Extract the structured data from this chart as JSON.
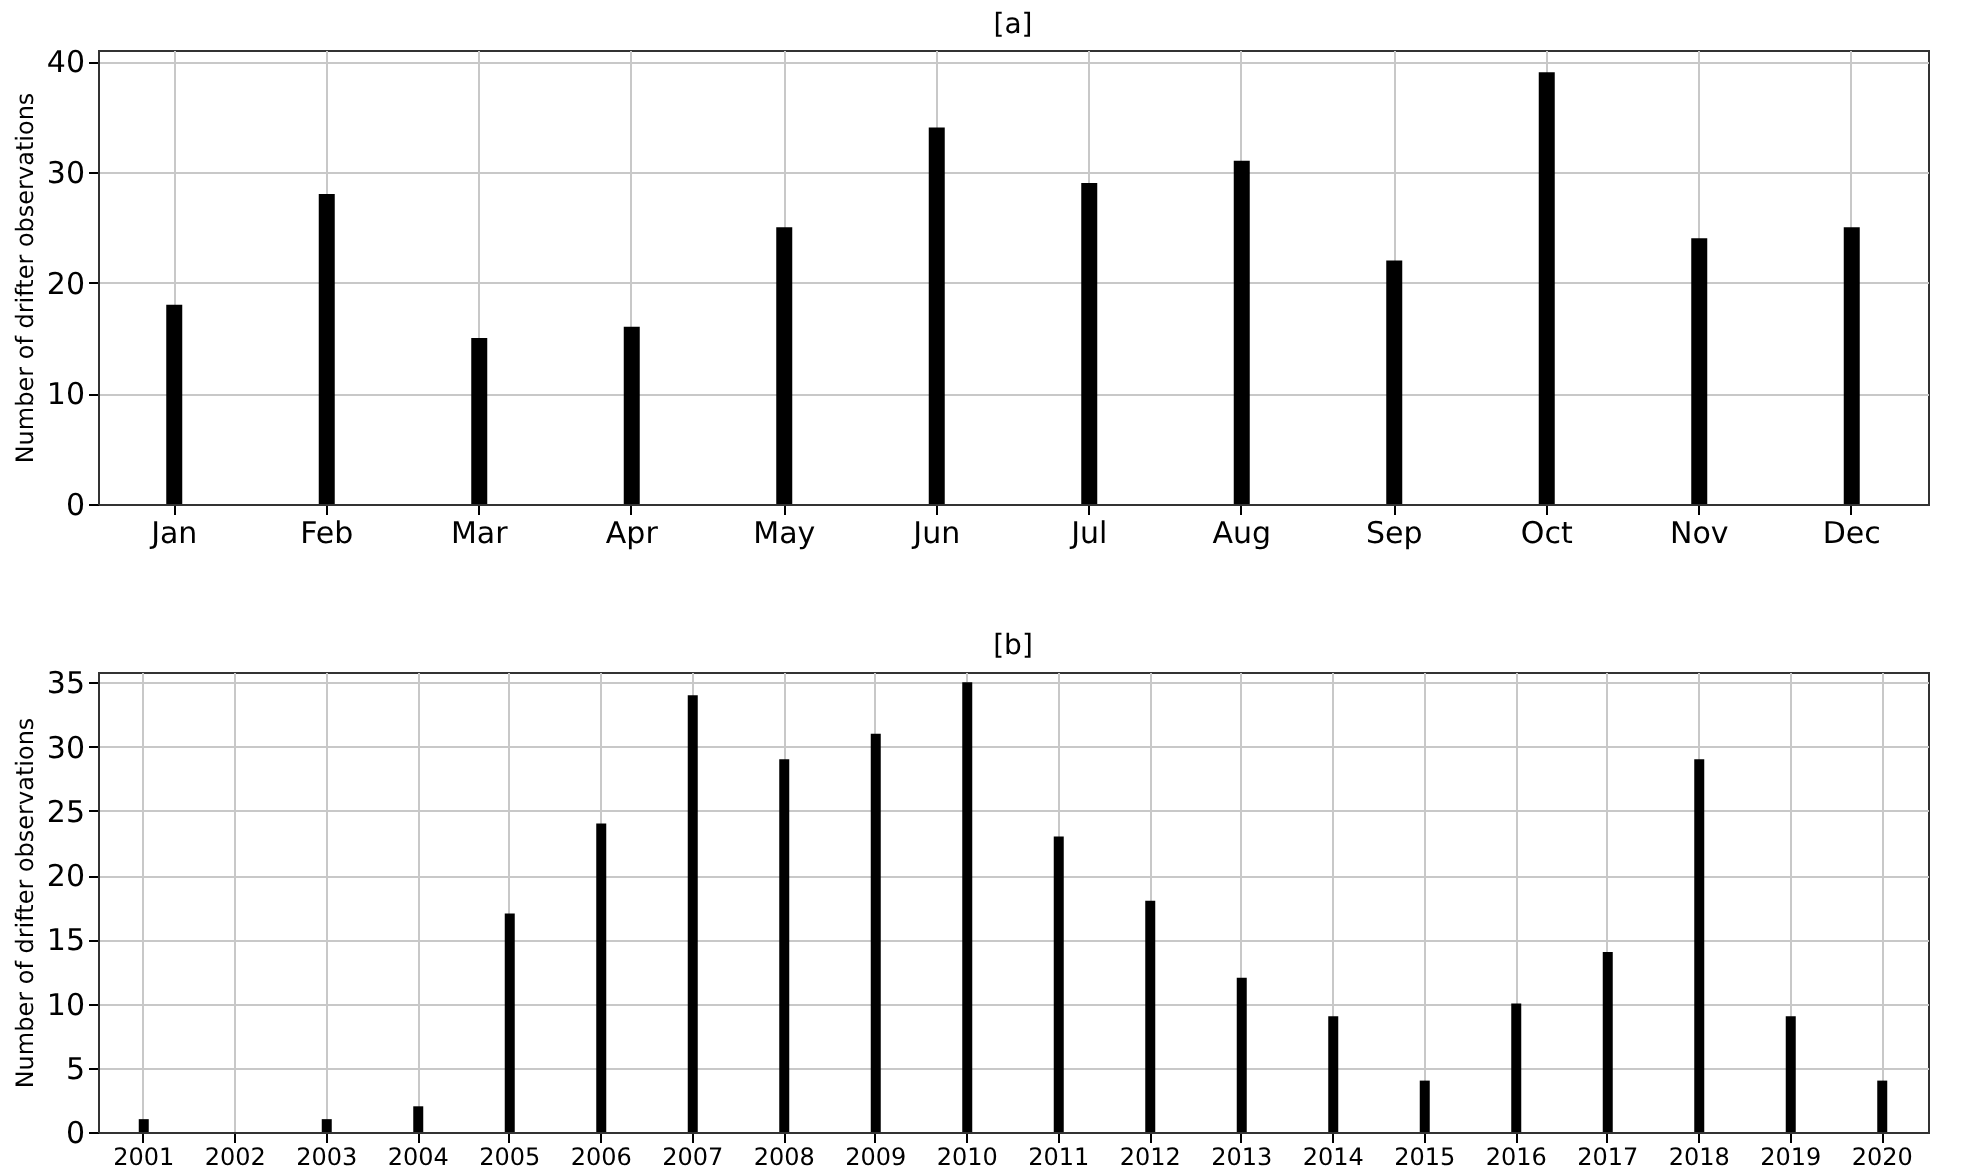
{
  "chart_data": [
    {
      "type": "bar",
      "title": "[a]",
      "ylabel": "Number of drifter observations",
      "categories": [
        "Jan",
        "Feb",
        "Mar",
        "Apr",
        "May",
        "Jun",
        "Jul",
        "Aug",
        "Sep",
        "Oct",
        "Nov",
        "Dec"
      ],
      "values": [
        18,
        28,
        15,
        16,
        25,
        34,
        29,
        31,
        22,
        39,
        24,
        25
      ],
      "color": "#000000",
      "ylim": [
        0,
        41
      ],
      "yticks": [
        0,
        10,
        20,
        30,
        40
      ],
      "grid": true
    },
    {
      "type": "bar",
      "title": "[b]",
      "ylabel": "Number of drifter observations",
      "categories": [
        "2001",
        "2002",
        "2003",
        "2004",
        "2005",
        "2006",
        "2007",
        "2008",
        "2009",
        "2010",
        "2011",
        "2012",
        "2013",
        "2014",
        "2015",
        "2016",
        "2017",
        "2018",
        "2019",
        "2020"
      ],
      "values": [
        1,
        0,
        1,
        2,
        17,
        24,
        34,
        29,
        31,
        35,
        23,
        18,
        12,
        9,
        4,
        10,
        14,
        29,
        9,
        4
      ],
      "color": "#000000",
      "ylim": [
        0,
        35.8
      ],
      "yticks": [
        0,
        5,
        10,
        15,
        20,
        25,
        30,
        35
      ],
      "grid": true
    }
  ]
}
